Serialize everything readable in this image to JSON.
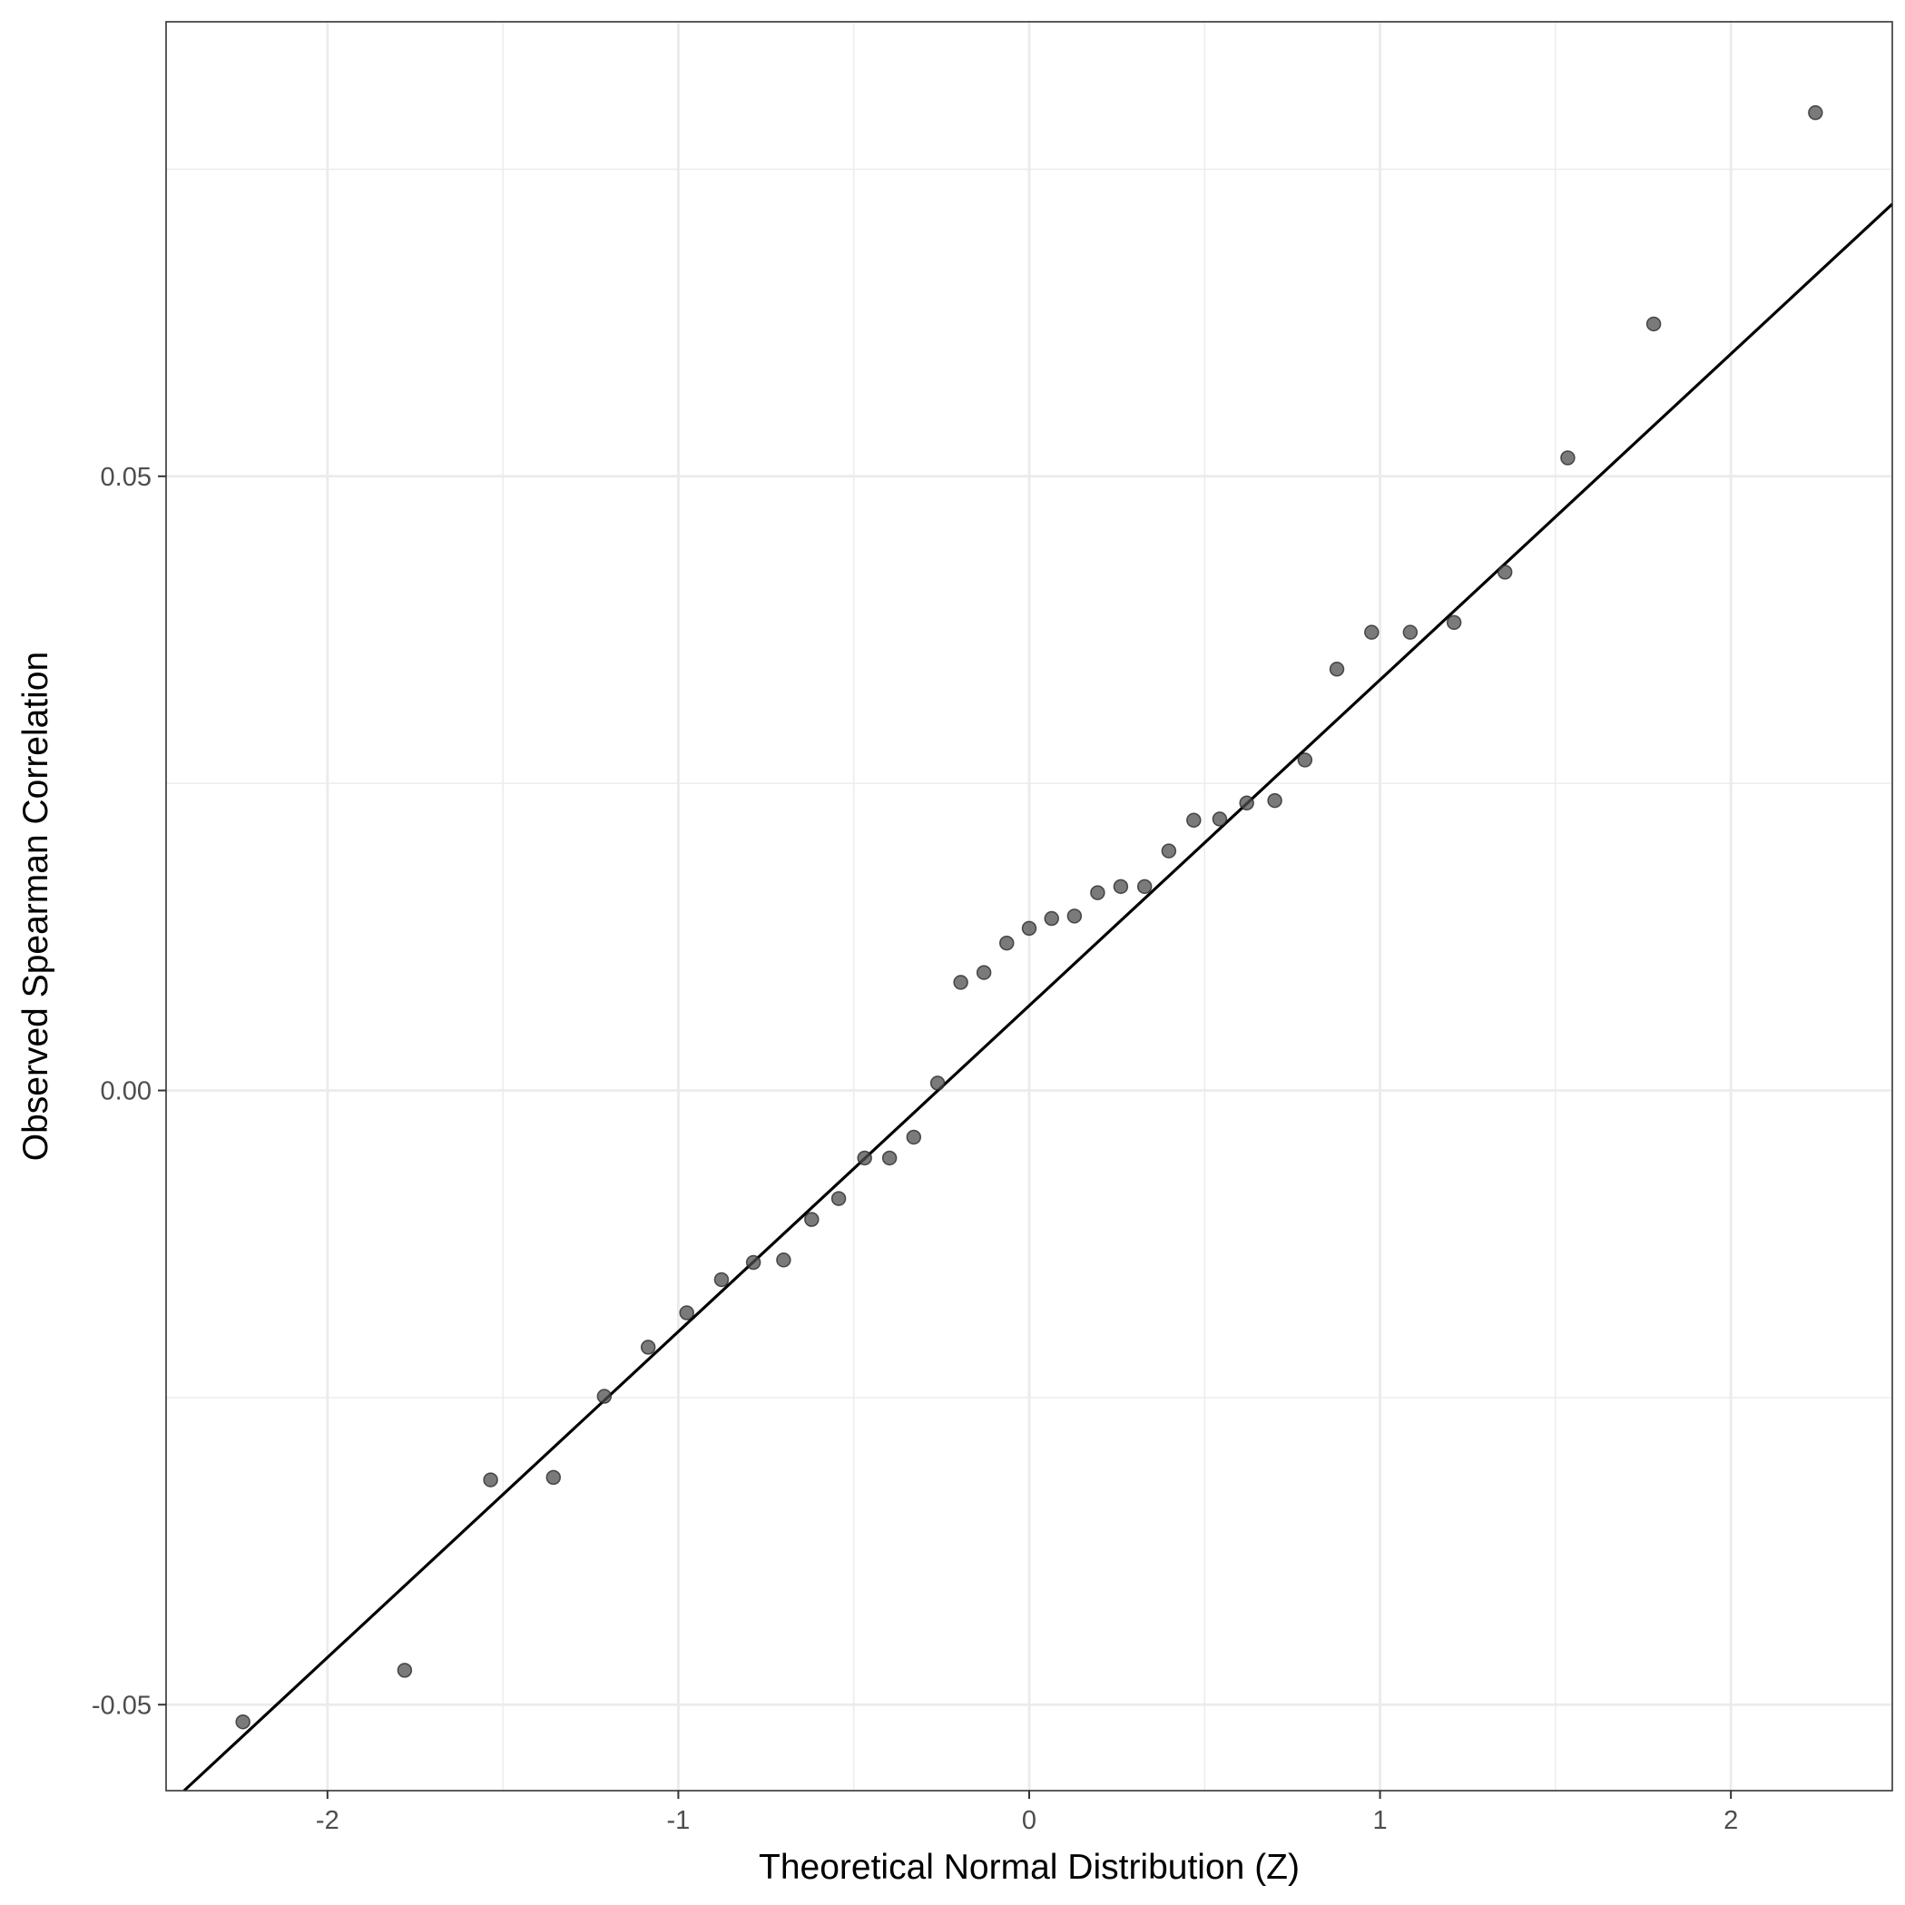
{
  "chart_data": {
    "type": "scatter",
    "title": "",
    "xlabel": "Theoretical Normal Distribution (Z)",
    "ylabel": "Observed Spearman Correlation",
    "xlim": [
      -2.46,
      2.46
    ],
    "ylim": [
      -0.057,
      0.087
    ],
    "x_ticks": [
      -2,
      -1,
      0,
      1,
      2
    ],
    "x_tick_labels": [
      "-2",
      "-1",
      "0",
      "1",
      "2"
    ],
    "y_ticks": [
      -0.05,
      0,
      0.05
    ],
    "y_tick_labels": [
      "-0.05",
      "0.00",
      "0.05"
    ],
    "x_minor_grid": [
      -1.5,
      -0.5,
      0.5,
      1.5
    ],
    "y_minor_grid": [
      -0.025,
      0.025,
      0.075
    ],
    "grid": true,
    "points": [
      {
        "x": -2.241,
        "y": -0.0514
      },
      {
        "x": -1.78,
        "y": -0.0472
      },
      {
        "x": -1.535,
        "y": -0.0317
      },
      {
        "x": -1.356,
        "y": -0.0315
      },
      {
        "x": -1.211,
        "y": -0.0249
      },
      {
        "x": -1.086,
        "y": -0.0209
      },
      {
        "x": -0.976,
        "y": -0.0181
      },
      {
        "x": -0.877,
        "y": -0.0154
      },
      {
        "x": -0.786,
        "y": -0.014
      },
      {
        "x": -0.7,
        "y": -0.0138
      },
      {
        "x": -0.62,
        "y": -0.0105
      },
      {
        "x": -0.543,
        "y": -0.0088
      },
      {
        "x": -0.469,
        "y": -0.0055
      },
      {
        "x": -0.398,
        "y": -0.0055
      },
      {
        "x": -0.329,
        "y": -0.0038
      },
      {
        "x": -0.261,
        "y": 0.0006
      },
      {
        "x": -0.195,
        "y": 0.0088
      },
      {
        "x": -0.129,
        "y": 0.0096
      },
      {
        "x": -0.064,
        "y": 0.012
      },
      {
        "x": 0.0,
        "y": 0.0132
      },
      {
        "x": 0.064,
        "y": 0.014
      },
      {
        "x": 0.129,
        "y": 0.0142
      },
      {
        "x": 0.195,
        "y": 0.0161
      },
      {
        "x": 0.261,
        "y": 0.0166
      },
      {
        "x": 0.329,
        "y": 0.0166
      },
      {
        "x": 0.398,
        "y": 0.0195
      },
      {
        "x": 0.469,
        "y": 0.022
      },
      {
        "x": 0.543,
        "y": 0.0221
      },
      {
        "x": 0.62,
        "y": 0.0234
      },
      {
        "x": 0.7,
        "y": 0.0236
      },
      {
        "x": 0.786,
        "y": 0.0269
      },
      {
        "x": 0.877,
        "y": 0.0343
      },
      {
        "x": 0.976,
        "y": 0.0373
      },
      {
        "x": 1.086,
        "y": 0.0373
      },
      {
        "x": 1.211,
        "y": 0.0381
      },
      {
        "x": 1.356,
        "y": 0.0422
      },
      {
        "x": 1.535,
        "y": 0.0515
      },
      {
        "x": 1.78,
        "y": 0.0624
      },
      {
        "x": 2.241,
        "y": 0.0796
      }
    ],
    "reference_line": {
      "intercept": 0.0069,
      "slope": 0.02653
    },
    "point_color": "#4d4d4d",
    "line_color": "#000000",
    "grid_color": "#ebebeb"
  }
}
